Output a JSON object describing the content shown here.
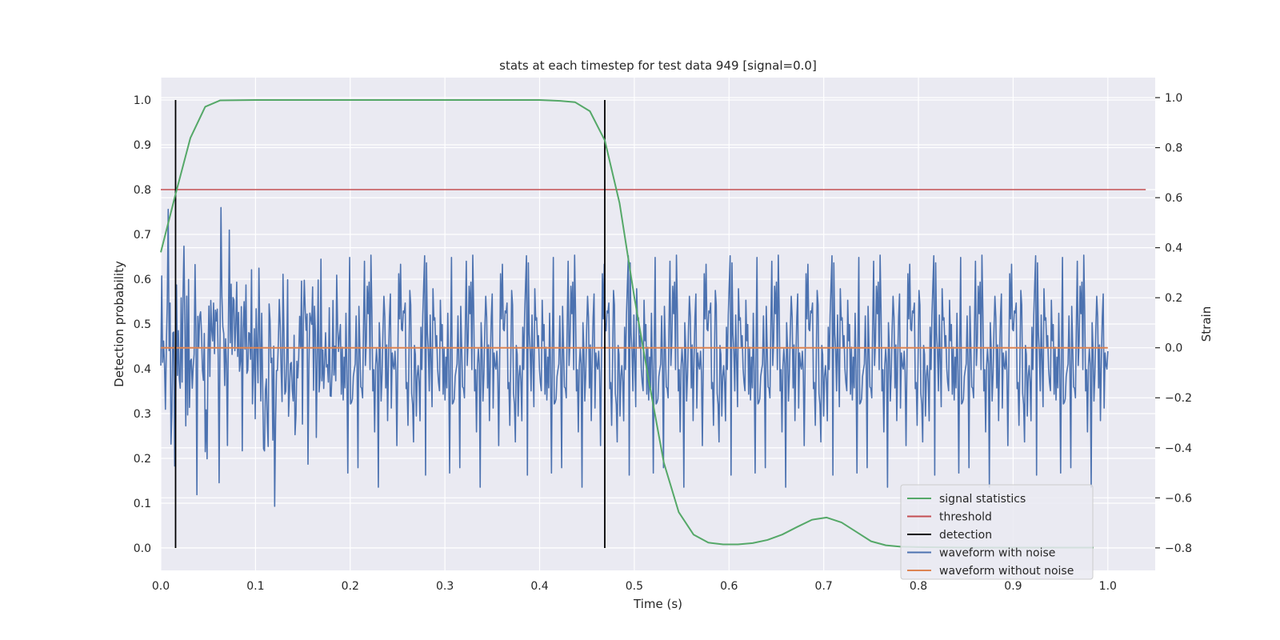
{
  "chart_data": {
    "type": "line",
    "title": "stats at each timestep for test data 949 [signal=0.0]",
    "xlabel": "Time (s)",
    "ylabel": "Detection probability",
    "y2label": "Strain",
    "xlim": [
      0.0,
      1.05
    ],
    "ylim": [
      -0.05,
      1.05
    ],
    "y2lim": [
      -0.89,
      1.08
    ],
    "xticks": [
      "0.0",
      "0.1",
      "0.2",
      "0.3",
      "0.4",
      "0.5",
      "0.6",
      "0.7",
      "0.8",
      "0.9",
      "1.0"
    ],
    "yticks": [
      "0.0",
      "0.1",
      "0.2",
      "0.3",
      "0.4",
      "0.5",
      "0.6",
      "0.7",
      "0.8",
      "0.9",
      "1.0"
    ],
    "y2ticks": [
      "−0.8",
      "−0.6",
      "−0.4",
      "−0.2",
      "0.0",
      "0.2",
      "0.4",
      "0.6",
      "0.8",
      "1.0"
    ],
    "grid": true,
    "legend_position": "lower-right",
    "colors": {
      "signal": "#55a868",
      "threshold": "#c44e52",
      "detection": "#000000",
      "noise": "#4c72b0",
      "clean": "#dd8452",
      "background": "#eaeaf2",
      "grid": "#ffffff"
    },
    "series": [
      {
        "name": "signal statistics",
        "axis": "left",
        "x": [
          0.0,
          0.0156,
          0.0312,
          0.0469,
          0.0625,
          0.1,
          0.2,
          0.3,
          0.4,
          0.422,
          0.4375,
          0.4531,
          0.4688,
          0.4844,
          0.5,
          0.5156,
          0.5312,
          0.5469,
          0.5625,
          0.5781,
          0.5938,
          0.6094,
          0.625,
          0.6406,
          0.6562,
          0.6719,
          0.6875,
          0.7031,
          0.7188,
          0.7344,
          0.75,
          0.7656,
          0.7812,
          0.8,
          0.85,
          0.9,
          0.95,
          0.985
        ],
        "y": [
          0.66,
          0.79,
          0.915,
          0.985,
          0.999,
          1.0,
          1.0,
          1.0,
          1.0,
          0.998,
          0.995,
          0.975,
          0.91,
          0.77,
          0.56,
          0.37,
          0.19,
          0.08,
          0.03,
          0.012,
          0.008,
          0.008,
          0.011,
          0.018,
          0.03,
          0.047,
          0.063,
          0.068,
          0.057,
          0.036,
          0.015,
          0.006,
          0.003,
          0.002,
          0.001,
          0.001,
          0.001,
          0.001
        ]
      },
      {
        "name": "threshold",
        "axis": "left",
        "x": [
          0.0,
          1.04
        ],
        "y": [
          0.8,
          0.8
        ]
      },
      {
        "name": "detection",
        "axis": "left",
        "x": [
          0.0156,
          0.4688
        ],
        "y": [
          1.0,
          1.0
        ]
      },
      {
        "name": "waveform with noise",
        "axis": "right",
        "n": 1024,
        "seed": 949,
        "std": 0.22,
        "x": [
          0.0,
          1.0
        ]
      },
      {
        "name": "waveform without noise",
        "axis": "right",
        "x": [
          0.0,
          1.0
        ],
        "y": [
          0.0,
          0.0
        ]
      }
    ]
  }
}
